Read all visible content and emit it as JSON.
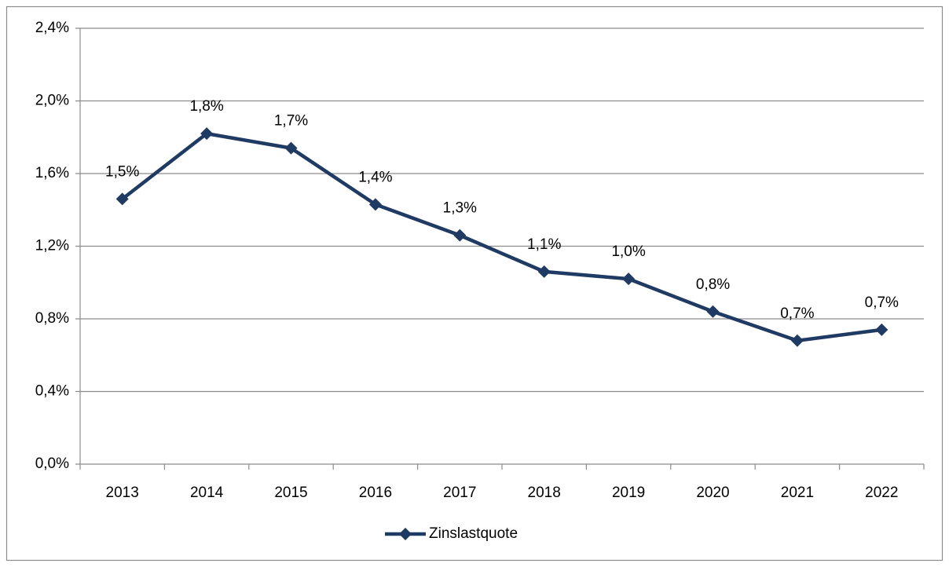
{
  "chart_data": {
    "type": "line",
    "categories": [
      "2013",
      "2014",
      "2015",
      "2016",
      "2017",
      "2018",
      "2019",
      "2020",
      "2021",
      "2022"
    ],
    "series": [
      {
        "name": "Zinslastquote",
        "color": "#1f3a63",
        "values": [
          1.46,
          1.82,
          1.74,
          1.43,
          1.26,
          1.06,
          1.02,
          0.84,
          0.68,
          0.74
        ],
        "value_labels": [
          "1,5%",
          "1,8%",
          "1,7%",
          "1,4%",
          "1,3%",
          "1,1%",
          "1,0%",
          "0,8%",
          "0,7%",
          "0,7%"
        ]
      }
    ],
    "ylim": [
      0,
      2.4
    ],
    "yticks": [
      {
        "value": 0,
        "label": "0,0%"
      },
      {
        "value": 0.4,
        "label": "0,4%"
      },
      {
        "value": 0.8,
        "label": "0,8%"
      },
      {
        "value": 1.2,
        "label": "1,2%"
      },
      {
        "value": 1.6,
        "label": "1,6%"
      },
      {
        "value": 2.0,
        "label": "2,0%"
      },
      {
        "value": 2.4,
        "label": "2,4%"
      }
    ],
    "grid": true,
    "legend": "bottom"
  }
}
